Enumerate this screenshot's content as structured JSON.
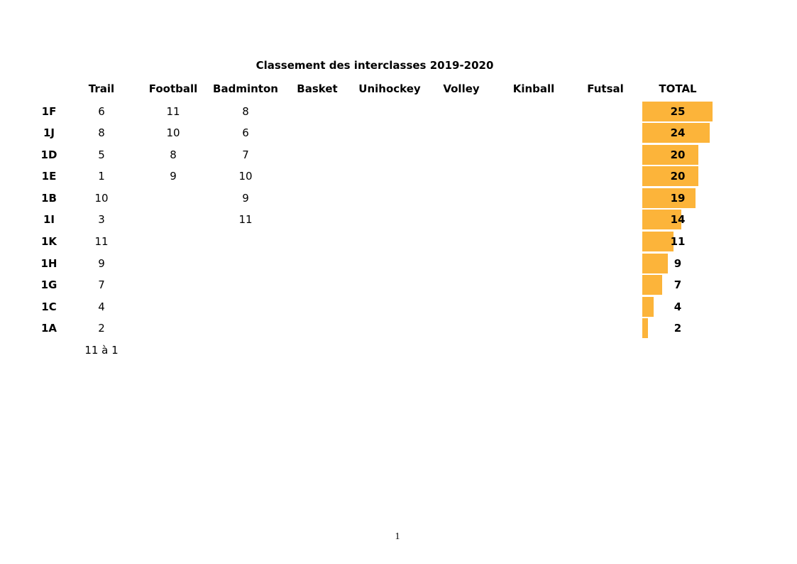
{
  "page": {
    "title": "Classement des interclasses 2019-2020",
    "page_number": "1"
  },
  "colors": {
    "bar": "#FCB43A",
    "text": "#000000",
    "background": "#FFFFFF"
  },
  "table": {
    "columns": [
      "Trail",
      "Football",
      "Badminton",
      "Basket",
      "Unihockey",
      "Volley",
      "Kinball",
      "Futsal",
      "TOTAL"
    ],
    "rows": [
      {
        "label": "1F",
        "trail": "6",
        "football": "11",
        "badminton": "8",
        "total": 25
      },
      {
        "label": "1J",
        "trail": "8",
        "football": "10",
        "badminton": "6",
        "total": 24
      },
      {
        "label": "1D",
        "trail": "5",
        "football": "8",
        "badminton": "7",
        "total": 20
      },
      {
        "label": "1E",
        "trail": "1",
        "football": "9",
        "badminton": "10",
        "total": 20
      },
      {
        "label": "1B",
        "trail": "10",
        "football": "",
        "badminton": "9",
        "total": 19
      },
      {
        "label": "1I",
        "trail": "3",
        "football": "",
        "badminton": "11",
        "total": 14
      },
      {
        "label": "1K",
        "trail": "11",
        "football": "",
        "badminton": "",
        "total": 11
      },
      {
        "label": "1H",
        "trail": "9",
        "football": "",
        "badminton": "",
        "total": 9
      },
      {
        "label": "1G",
        "trail": "7",
        "football": "",
        "badminton": "",
        "total": 7
      },
      {
        "label": "1C",
        "trail": "4",
        "football": "",
        "badminton": "",
        "total": 4
      },
      {
        "label": "1A",
        "trail": "2",
        "football": "",
        "badminton": "",
        "total": 2
      }
    ],
    "footnote": "11 à 1"
  },
  "chart_data": {
    "type": "bar",
    "orientation": "horizontal",
    "title": "Classement des interclasses 2019-2020",
    "categories": [
      "1F",
      "1J",
      "1D",
      "1E",
      "1B",
      "1I",
      "1K",
      "1H",
      "1G",
      "1C",
      "1A"
    ],
    "series": [
      {
        "name": "Trail",
        "values": [
          6,
          8,
          5,
          1,
          10,
          3,
          11,
          9,
          7,
          4,
          2
        ]
      },
      {
        "name": "Football",
        "values": [
          11,
          10,
          8,
          9,
          null,
          null,
          null,
          null,
          null,
          null,
          null
        ]
      },
      {
        "name": "Badminton",
        "values": [
          8,
          6,
          7,
          10,
          9,
          11,
          null,
          null,
          null,
          null,
          null
        ]
      },
      {
        "name": "Basket",
        "values": [
          null,
          null,
          null,
          null,
          null,
          null,
          null,
          null,
          null,
          null,
          null
        ]
      },
      {
        "name": "Unihockey",
        "values": [
          null,
          null,
          null,
          null,
          null,
          null,
          null,
          null,
          null,
          null,
          null
        ]
      },
      {
        "name": "Volley",
        "values": [
          null,
          null,
          null,
          null,
          null,
          null,
          null,
          null,
          null,
          null,
          null
        ]
      },
      {
        "name": "Kinball",
        "values": [
          null,
          null,
          null,
          null,
          null,
          null,
          null,
          null,
          null,
          null,
          null
        ]
      },
      {
        "name": "Futsal",
        "values": [
          null,
          null,
          null,
          null,
          null,
          null,
          null,
          null,
          null,
          null,
          null
        ]
      }
    ],
    "bar_series": {
      "name": "TOTAL",
      "values": [
        25,
        24,
        20,
        20,
        19,
        14,
        11,
        9,
        7,
        4,
        2
      ]
    },
    "xlim": [
      0,
      25
    ],
    "grid": false,
    "legend": false,
    "bar_color": "#FCB43A",
    "annotations": [
      "11 à 1"
    ]
  }
}
